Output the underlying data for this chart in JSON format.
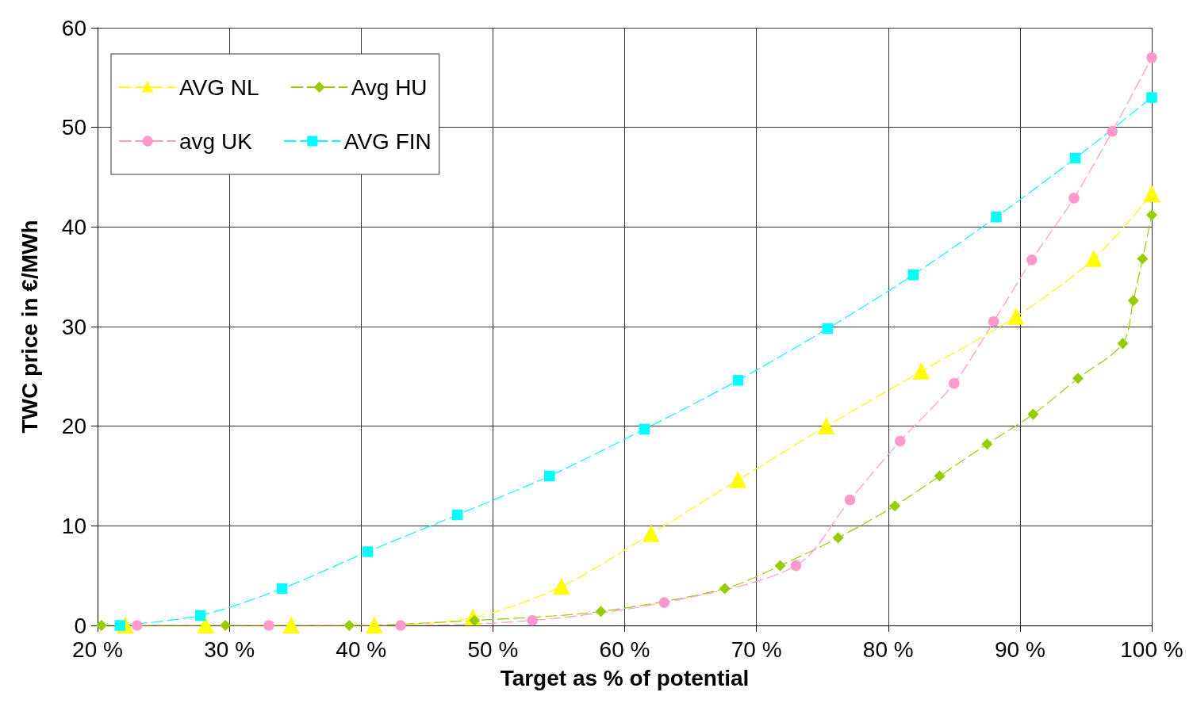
{
  "chart_data": {
    "type": "line",
    "xlabel": "Target as % of potential",
    "ylabel": "TWC price in €/MWh",
    "xlim": [
      20,
      100
    ],
    "xticks": [
      {
        "value": 20,
        "label": "20 %"
      },
      {
        "value": 30,
        "label": "30 %"
      },
      {
        "value": 40,
        "label": "40 %"
      },
      {
        "value": 50,
        "label": "50 %"
      },
      {
        "value": 60,
        "label": "60 %"
      },
      {
        "value": 70,
        "label": "70 %"
      },
      {
        "value": 80,
        "label": "80 %"
      },
      {
        "value": 90,
        "label": "90 %"
      },
      {
        "value": 100,
        "label": "100 %"
      }
    ],
    "ylim": [
      0,
      60
    ],
    "yticks": [
      0,
      10,
      20,
      30,
      40,
      50,
      60
    ],
    "grid": true,
    "legend": "top left",
    "line_style": "dashed",
    "series": [
      {
        "name": "AVG NL",
        "color": "#ffff00",
        "marker": "triangle",
        "x": [
          22.1,
          28.2,
          34.7,
          41.0,
          48.5,
          55.2,
          62.0,
          68.6,
          75.3,
          82.5,
          89.7,
          95.6,
          100
        ],
        "values": [
          0,
          0,
          0,
          0,
          0.8,
          3.9,
          9.2,
          14.6,
          20.0,
          25.5,
          31.0,
          36.8,
          43.3
        ]
      },
      {
        "name": "Avg HU",
        "color": "#99cc00",
        "marker": "diamond",
        "x": [
          20.3,
          29.7,
          39.1,
          48.6,
          58.2,
          67.6,
          71.8,
          76.2,
          80.5,
          83.9,
          87.5,
          91.0,
          94.4,
          97.8,
          98.6,
          99.3,
          100
        ],
        "values": [
          0,
          0,
          0,
          0.5,
          1.4,
          3.7,
          6.0,
          8.8,
          12.0,
          15.0,
          18.2,
          21.2,
          24.8,
          28.3,
          32.6,
          36.8,
          41.2
        ]
      },
      {
        "name": "avg UK",
        "color": "#ff99cc",
        "marker": "circle",
        "x": [
          23.0,
          33.0,
          43.0,
          53.0,
          63.0,
          73.0,
          77.1,
          80.9,
          85.0,
          88.0,
          90.9,
          94.1,
          97.0,
          100
        ],
        "values": [
          0,
          0,
          0,
          0.5,
          2.3,
          6.0,
          12.6,
          18.5,
          24.3,
          30.5,
          36.7,
          42.9,
          49.6,
          57.0
        ]
      },
      {
        "name": "AVG FIN",
        "color": "#00ffff",
        "marker": "square",
        "x": [
          21.7,
          27.8,
          34.0,
          40.5,
          47.3,
          54.3,
          61.5,
          68.6,
          75.4,
          81.9,
          88.2,
          94.2,
          100
        ],
        "values": [
          0,
          1.0,
          3.7,
          7.4,
          11.1,
          15.0,
          19.7,
          24.6,
          29.8,
          35.2,
          41.0,
          46.9,
          53.0
        ]
      }
    ]
  }
}
